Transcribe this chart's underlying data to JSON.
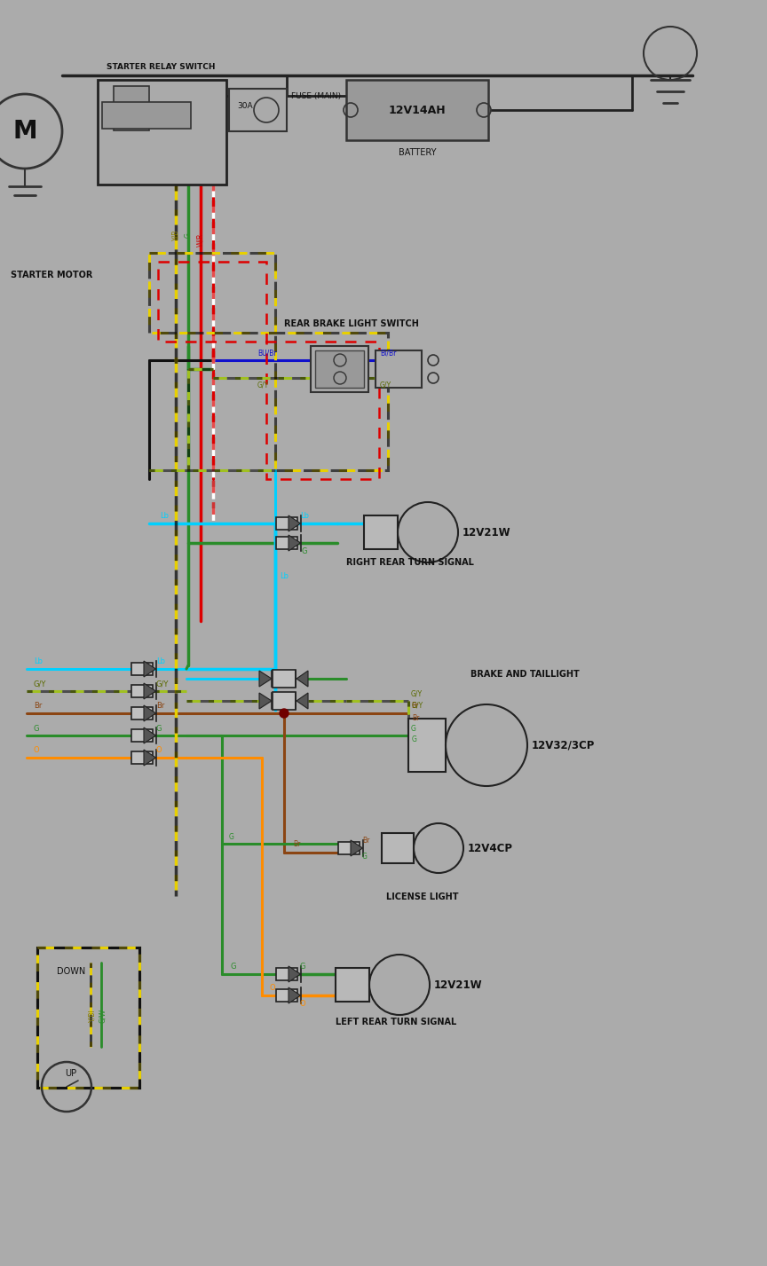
{
  "bg": "#ababab",
  "wc": {
    "Lb": "#00d0ff",
    "G": "#2a8c2a",
    "GY": "#a0c020",
    "Br": "#8B4513",
    "O": "#FF8C00",
    "R": "#dd0000",
    "Y": "#e8d000",
    "W": "#ffffff",
    "Bu": "#1010cc",
    "Blk": "#111111",
    "dark": "#222222"
  },
  "labels": {
    "starter_relay": "STARTER RELAY SWITCH",
    "fuse_main": "FUSE (MAIN)",
    "battery": "BATTERY",
    "battery_spec": "12V14AH",
    "starter_motor": "STARTER MOTOR",
    "rear_brake": "REAR BRAKE LIGHT SWITCH",
    "right_rear_turn": "RIGHT REAR TURN SIGNAL",
    "brake_tail": "BRAKE AND TAILLIGHT",
    "license": "LICENSE LIGHT",
    "left_rear_turn": "LEFT REAR TURN SIGNAL",
    "b21w": "12V21W",
    "b32cp": "12V32/3CP",
    "b4cp": "12V4CP",
    "down": "DOWN",
    "up": "UP"
  }
}
